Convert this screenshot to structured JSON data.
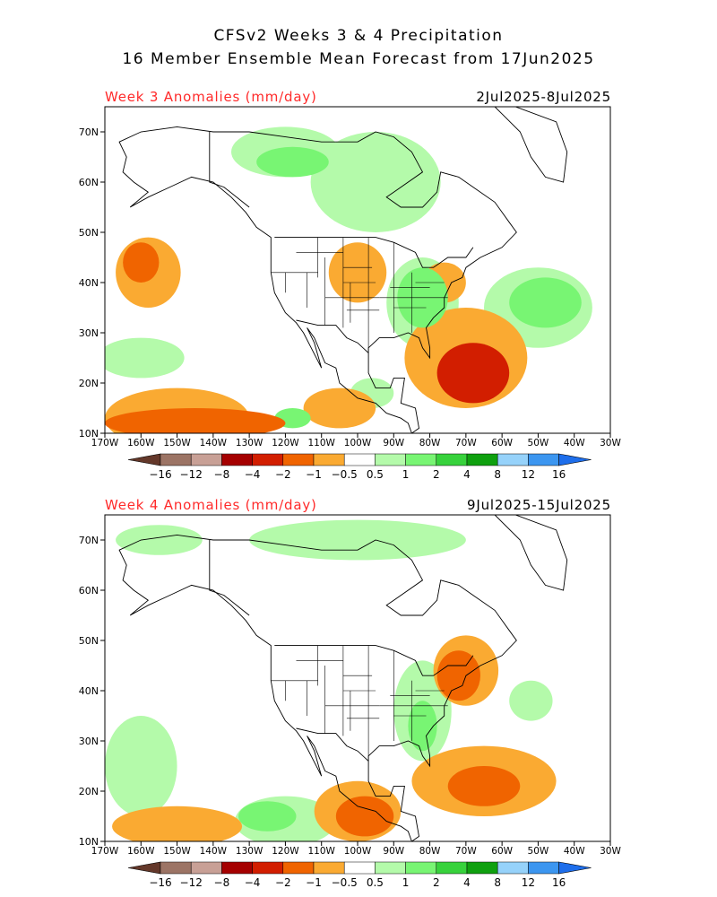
{
  "title": {
    "line1": "CFSv2 Weeks 3 & 4 Precipitation",
    "line2": "16 Member Ensemble Mean Forecast from 17Jun2025"
  },
  "panels": [
    {
      "id": "week3",
      "label": "Week 3 Anomalies (mm/day)",
      "dates": "2Jul2025-8Jul2025",
      "blobs": [
        {
          "lon": -160,
          "lat": 44,
          "rx": 5,
          "ry": 4,
          "level": "-2"
        },
        {
          "lon": -158,
          "lat": 42,
          "rx": 9,
          "ry": 7,
          "level": "-1"
        },
        {
          "lon": -156,
          "lat": 43,
          "rx": 12,
          "ry": 9,
          "level": "-0.5"
        },
        {
          "lon": -145,
          "lat": 12,
          "rx": 25,
          "ry": 3,
          "level": "-2"
        },
        {
          "lon": -150,
          "lat": 13,
          "rx": 20,
          "ry": 6,
          "level": "-1"
        },
        {
          "lon": -140,
          "lat": 14,
          "rx": 30,
          "ry": 7,
          "level": "-0.5"
        },
        {
          "lon": -105,
          "lat": 15,
          "rx": 10,
          "ry": 4,
          "level": "-1"
        },
        {
          "lon": -105,
          "lat": 16,
          "rx": 14,
          "ry": 6,
          "level": "-0.5"
        },
        {
          "lon": -68,
          "lat": 22,
          "rx": 10,
          "ry": 6,
          "level": "-4"
        },
        {
          "lon": -70,
          "lat": 25,
          "rx": 17,
          "ry": 10,
          "level": "-1"
        },
        {
          "lon": -68,
          "lat": 25,
          "rx": 25,
          "ry": 14,
          "level": "-0.5"
        },
        {
          "lon": -76,
          "lat": 40,
          "rx": 6,
          "ry": 4,
          "level": "-1"
        },
        {
          "lon": -100,
          "lat": 42,
          "rx": 8,
          "ry": 6,
          "level": "-1"
        },
        {
          "lon": -95,
          "lat": 44,
          "rx": 18,
          "ry": 8,
          "level": "-0.5"
        },
        {
          "lon": -65,
          "lat": 60,
          "rx": 9,
          "ry": 6,
          "level": "-0.5"
        },
        {
          "lon": -120,
          "lat": 66,
          "rx": 15,
          "ry": 5,
          "level": "0.5"
        },
        {
          "lon": -118,
          "lat": 64,
          "rx": 10,
          "ry": 3,
          "level": "1"
        },
        {
          "lon": -95,
          "lat": 60,
          "rx": 18,
          "ry": 10,
          "level": "0.5"
        },
        {
          "lon": -82,
          "lat": 37,
          "rx": 7,
          "ry": 6,
          "level": "1"
        },
        {
          "lon": -82,
          "lat": 36,
          "rx": 10,
          "ry": 9,
          "level": "0.5"
        },
        {
          "lon": -48,
          "lat": 36,
          "rx": 10,
          "ry": 5,
          "level": "1"
        },
        {
          "lon": -50,
          "lat": 35,
          "rx": 15,
          "ry": 8,
          "level": "0.5"
        },
        {
          "lon": -160,
          "lat": 25,
          "rx": 12,
          "ry": 4,
          "level": "0.5"
        },
        {
          "lon": -118,
          "lat": 13,
          "rx": 5,
          "ry": 2,
          "level": "1"
        },
        {
          "lon": -96,
          "lat": 18,
          "rx": 6,
          "ry": 3,
          "level": "0.5"
        }
      ]
    },
    {
      "id": "week4",
      "label": "Week 4 Anomalies (mm/day)",
      "dates": "9Jul2025-15Jul2025",
      "blobs": [
        {
          "lon": -150,
          "lat": 13,
          "rx": 18,
          "ry": 4,
          "level": "-1"
        },
        {
          "lon": -140,
          "lat": 14,
          "rx": 30,
          "ry": 6,
          "level": "-0.5"
        },
        {
          "lon": -98,
          "lat": 15,
          "rx": 8,
          "ry": 4,
          "level": "-2"
        },
        {
          "lon": -100,
          "lat": 16,
          "rx": 12,
          "ry": 6,
          "level": "-1"
        },
        {
          "lon": -65,
          "lat": 21,
          "rx": 10,
          "ry": 4,
          "level": "-2"
        },
        {
          "lon": -65,
          "lat": 22,
          "rx": 20,
          "ry": 7,
          "level": "-1"
        },
        {
          "lon": -60,
          "lat": 20,
          "rx": 30,
          "ry": 11,
          "level": "-0.5"
        },
        {
          "lon": -72,
          "lat": 43,
          "rx": 6,
          "ry": 5,
          "level": "-2"
        },
        {
          "lon": -70,
          "lat": 44,
          "rx": 9,
          "ry": 7,
          "level": "-1"
        },
        {
          "lon": -60,
          "lat": 48,
          "rx": 25,
          "ry": 13,
          "level": "-0.5"
        },
        {
          "lon": -120,
          "lat": 48,
          "rx": 20,
          "ry": 6,
          "level": "-0.5"
        },
        {
          "lon": -45,
          "lat": 62,
          "rx": 10,
          "ry": 4,
          "level": "-0.5"
        },
        {
          "lon": -82,
          "lat": 33,
          "rx": 4,
          "ry": 5,
          "level": "1"
        },
        {
          "lon": -82,
          "lat": 36,
          "rx": 8,
          "ry": 10,
          "level": "0.5"
        },
        {
          "lon": -125,
          "lat": 15,
          "rx": 8,
          "ry": 3,
          "level": "1"
        },
        {
          "lon": -120,
          "lat": 14,
          "rx": 14,
          "ry": 5,
          "level": "0.5"
        },
        {
          "lon": -160,
          "lat": 25,
          "rx": 10,
          "ry": 10,
          "level": "0.5"
        },
        {
          "lon": -100,
          "lat": 70,
          "rx": 30,
          "ry": 4,
          "level": "0.5"
        },
        {
          "lon": -155,
          "lat": 70,
          "rx": 12,
          "ry": 3,
          "level": "0.5"
        },
        {
          "lon": -52,
          "lat": 38,
          "rx": 6,
          "ry": 4,
          "level": "0.5"
        }
      ]
    }
  ],
  "axes": {
    "lat_labels": [
      "70N",
      "60N",
      "50N",
      "40N",
      "30N",
      "20N",
      "10N"
    ],
    "lon_labels": [
      "170W",
      "160W",
      "150W",
      "140W",
      "130W",
      "120W",
      "110W",
      "100W",
      "90W",
      "80W",
      "70W",
      "60W",
      "50W",
      "40W",
      "30W"
    ]
  },
  "colorbar": {
    "labels": [
      "-16",
      "-12",
      "-8",
      "-4",
      "-2",
      "-1",
      "-0.5",
      "0.5",
      "1",
      "2",
      "4",
      "8",
      "12",
      "16"
    ],
    "colors": {
      "<-16": "#64382a",
      "-16": "#9c7465",
      "-12": "#c8a096",
      "-8": "#a50000",
      "-4": "#d21e00",
      "-2": "#f06400",
      "-1": "#faaa32",
      "-0.5": "#ffffff",
      "0.5": "#b4faaa",
      "1": "#78f573",
      "2": "#37d23c",
      "4": "#0fa00f",
      "8": "#96d2fa",
      "12": "#3c96f0",
      ">16": "#1e6eeb"
    }
  }
}
